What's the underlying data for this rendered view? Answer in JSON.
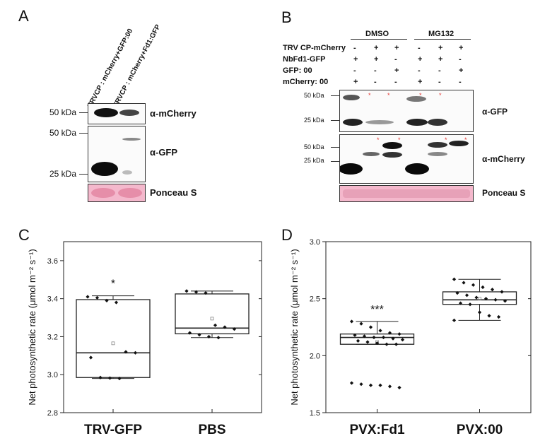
{
  "panel_letters": {
    "a": "A",
    "b": "B",
    "c": "C",
    "d": "D"
  },
  "panel_a": {
    "lanes": [
      "TRVCP : mCherry+GFP:00",
      "TRVCP : mCherry+Fd1:GFP"
    ],
    "mw": {
      "m50a": "50 kDa",
      "m50b": "50 kDa",
      "m25": "25 kDa"
    },
    "antibodies": {
      "mcherry": "α-mCherry",
      "gfp": "α-GFP",
      "ponceau": "Ponceau S"
    }
  },
  "panel_b": {
    "groups": {
      "dmso": "DMSO",
      "mg132": "MG132"
    },
    "rows": [
      {
        "label": "TRV CP-mCherry",
        "signs": [
          "-",
          "+",
          "+",
          "-",
          "+",
          "+"
        ]
      },
      {
        "label": "NbFd1-GFP",
        "signs": [
          "+",
          "+",
          "-",
          "+",
          "+",
          "-"
        ]
      },
      {
        "label": "GFP: 00",
        "signs": [
          "-",
          "-",
          "+",
          "-",
          "-",
          "+"
        ]
      },
      {
        "label": "mCherry: 00",
        "signs": [
          "+",
          "-",
          "-",
          "+",
          "-",
          "-"
        ]
      }
    ],
    "mw": {
      "g50": "50 kDa",
      "g25": "25 kDa",
      "c50": "50 kDa",
      "c25": "25 kDa"
    },
    "antibodies": {
      "gfp": "α-GFP",
      "mcherry": "α-mCherry",
      "ponceau": "Ponceau S"
    }
  },
  "chart_data": [
    {
      "type": "box",
      "ylabel": "Net photosynthetic rate (μmol m⁻² s⁻¹)",
      "ylim": [
        2.8,
        3.7
      ],
      "yticks": [
        "2.8",
        "3.0",
        "3.2",
        "3.4",
        "3.6"
      ],
      "categories": [
        "TRV-GFP",
        "PBS"
      ],
      "boxes": [
        {
          "q1": 2.985,
          "median": 3.115,
          "q3": 3.395,
          "whisker_low": 2.98,
          "whisker_high": 3.415,
          "mean": 3.165,
          "points": [
            3.41,
            3.405,
            3.39,
            3.38,
            3.12,
            3.115,
            3.09,
            2.985,
            2.982,
            2.98
          ],
          "annotation": "*"
        },
        {
          "q1": 3.215,
          "median": 3.245,
          "q3": 3.425,
          "whisker_low": 3.195,
          "whisker_high": 3.44,
          "mean": 3.295,
          "points": [
            3.44,
            3.435,
            3.43,
            3.26,
            3.25,
            3.24,
            3.22,
            3.21,
            3.2,
            3.195
          ],
          "annotation": ""
        }
      ]
    },
    {
      "type": "box",
      "ylabel": "Net photosynthetic rate (μmol m⁻² s⁻¹)",
      "ylim": [
        1.5,
        3.0
      ],
      "yticks": [
        "1.5",
        "2.0",
        "2.5",
        "3.0"
      ],
      "categories": [
        "PVX:Fd1",
        "PVX:00"
      ],
      "boxes": [
        {
          "q1": 2.1,
          "median": 2.16,
          "q3": 2.19,
          "whisker_low": 2.1,
          "whisker_high": 2.3,
          "mean": 2.12,
          "points": [
            2.3,
            2.28,
            2.25,
            2.22,
            2.2,
            2.19,
            2.18,
            2.17,
            2.16,
            2.16,
            2.15,
            2.14,
            2.13,
            2.12,
            2.11,
            2.1,
            2.1,
            1.76,
            1.75,
            1.74,
            1.74,
            1.73,
            1.72
          ],
          "annotation": "***"
        },
        {
          "q1": 2.45,
          "median": 2.49,
          "q3": 2.56,
          "whisker_low": 2.31,
          "whisker_high": 2.67,
          "mean": 2.5,
          "points": [
            2.67,
            2.64,
            2.62,
            2.6,
            2.58,
            2.56,
            2.55,
            2.53,
            2.51,
            2.5,
            2.49,
            2.48,
            2.46,
            2.45,
            2.38,
            2.35,
            2.34,
            2.31
          ],
          "annotation": ""
        }
      ]
    }
  ]
}
